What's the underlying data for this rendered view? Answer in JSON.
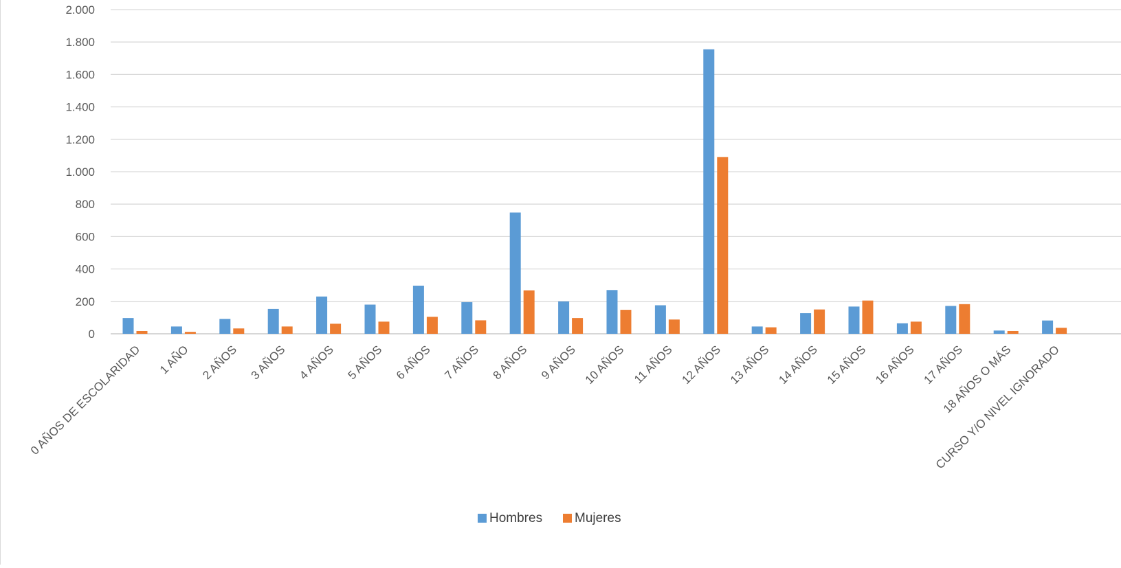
{
  "chart_data": {
    "type": "bar",
    "title": "",
    "xlabel": "",
    "ylabel": "",
    "ylim": [
      0,
      2000
    ],
    "y_ticks": [
      0,
      200,
      400,
      600,
      800,
      1000,
      1200,
      1400,
      1600,
      1800,
      2000
    ],
    "y_tick_labels": [
      "0",
      "200",
      "400",
      "600",
      "800",
      "1.000",
      "1.200",
      "1.400",
      "1.600",
      "1.800",
      "2.000"
    ],
    "grid": true,
    "legend_position": "bottom",
    "categories": [
      "0 AÑOS DE ESCOLARIDAD",
      "1 AÑO",
      "2 AÑOS",
      "3 AÑOS",
      "4 AÑOS",
      "5 AÑOS",
      "6 AÑOS",
      "7 AÑOS",
      "8 AÑOS",
      "9 AÑOS",
      "10 AÑOS",
      "11 AÑOS",
      "12 AÑOS",
      "13 AÑOS",
      "14 AÑOS",
      "15 AÑOS",
      "16 AÑOS",
      "17 AÑOS",
      "18 AÑOS O MÁS",
      "CURSO Y/O NIVEL IGNORADO"
    ],
    "series": [
      {
        "name": "Hombres",
        "color": "#5B9BD5",
        "values": [
          97,
          45,
          92,
          153,
          230,
          180,
          297,
          195,
          748,
          200,
          270,
          176,
          1755,
          45,
          127,
          168,
          65,
          172,
          20,
          82
        ]
      },
      {
        "name": "Mujeres",
        "color": "#ED7D31",
        "values": [
          17,
          12,
          33,
          45,
          62,
          75,
          105,
          83,
          268,
          97,
          148,
          88,
          1090,
          40,
          150,
          205,
          75,
          183,
          17,
          37
        ]
      }
    ]
  }
}
